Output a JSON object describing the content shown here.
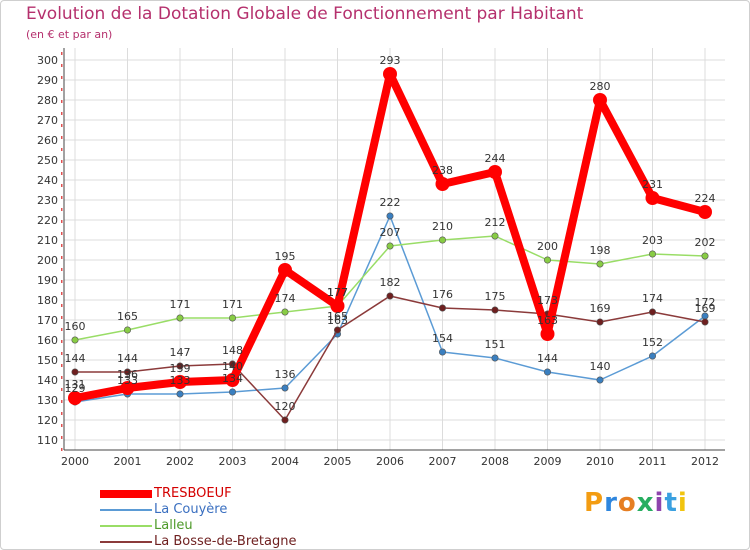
{
  "header": {
    "title": "Evolution de la Dotation Globale de Fonctionnement par Habitant",
    "subtitle": "(en € et par an)"
  },
  "logo": {
    "letters": [
      "P",
      "r",
      "o",
      "x",
      "i",
      "t",
      "i"
    ],
    "colors": [
      "#f39c12",
      "#2e86de",
      "#e67e22",
      "#27ae60",
      "#8e44ad",
      "#3aa0e0",
      "#f1c40f"
    ]
  },
  "chart_data": {
    "type": "line",
    "title": "Evolution de la Dotation Globale de Fonctionnement par Habitant",
    "subtitle": "(en € et par an)",
    "xlabel": "",
    "ylabel": "",
    "x": [
      "2000",
      "2001",
      "2002",
      "2003",
      "2004",
      "2005",
      "2006",
      "2007",
      "2008",
      "2009",
      "2010",
      "2011",
      "2012"
    ],
    "ylim": [
      110,
      300
    ],
    "yticks": [
      110,
      120,
      130,
      140,
      150,
      160,
      170,
      180,
      190,
      200,
      210,
      220,
      230,
      240,
      250,
      260,
      270,
      280,
      290,
      300
    ],
    "grid": true,
    "legend_position": "bottom-left",
    "series": [
      {
        "name": "TRESBOEUF",
        "color": "#ff0000",
        "marker_color": "#ff0000",
        "values": [
          131,
          136,
          139,
          140,
          195,
          177,
          293,
          238,
          244,
          163,
          280,
          231,
          224
        ],
        "labels": [
          "131",
          "136",
          "139",
          "140",
          "195",
          "177",
          "293",
          "238",
          "244",
          "163",
          "280",
          "231",
          "224"
        ]
      },
      {
        "name": "La Couyère",
        "color": "#5b9bd5",
        "marker_color": "#3a7fc0",
        "values": [
          129,
          133,
          133,
          134,
          136,
          163,
          222,
          154,
          151,
          144,
          140,
          152,
          172
        ],
        "labels": [
          "129",
          "133",
          "133",
          "134",
          "136",
          "163",
          "222",
          "154",
          "151",
          "144",
          "140",
          "152",
          "172"
        ]
      },
      {
        "name": "Lalleu",
        "color": "#99dd66",
        "marker_color": "#88cc44",
        "values": [
          160,
          165,
          171,
          171,
          174,
          177,
          207,
          210,
          212,
          200,
          198,
          203,
          202
        ],
        "labels": [
          "160",
          "165",
          "171",
          "171",
          "174",
          "177",
          "207",
          "210",
          "212",
          "200",
          "198",
          "203",
          "202"
        ]
      },
      {
        "name": "La Bosse-de-Bretagne",
        "color": "#8b3a3a",
        "marker_color": "#6e1f1f",
        "values": [
          144,
          144,
          147,
          148,
          120,
          165,
          182,
          176,
          175,
          173,
          169,
          174,
          169
        ],
        "labels": [
          "144",
          "144",
          "147",
          "148",
          "120",
          "165",
          "182",
          "176",
          "175",
          "173",
          "169",
          "174",
          "169"
        ]
      }
    ]
  }
}
